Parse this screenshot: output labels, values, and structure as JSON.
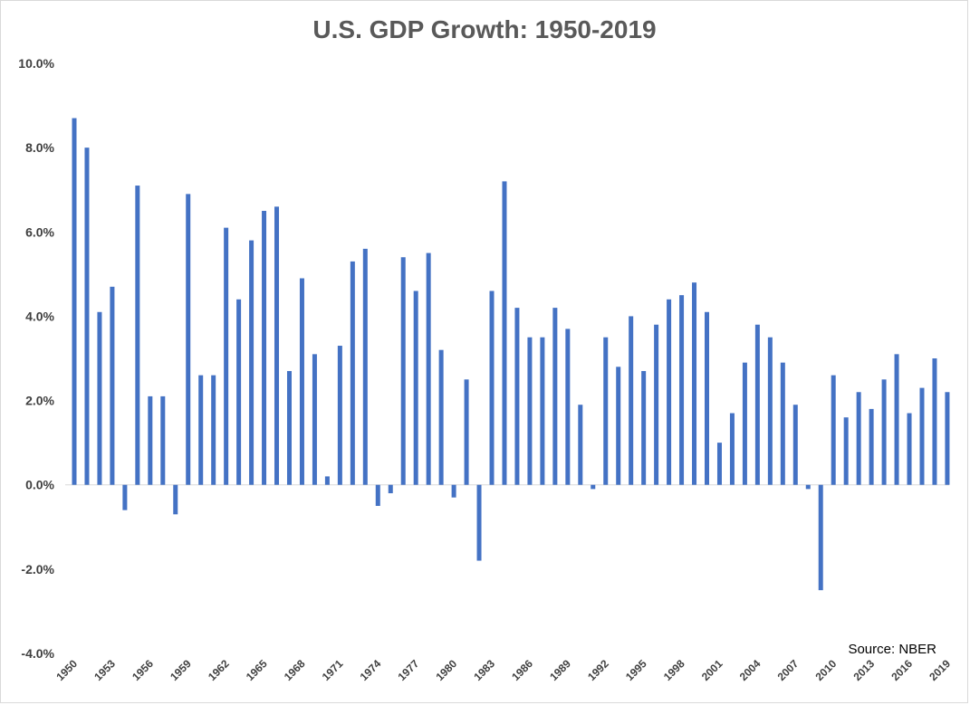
{
  "chart_data": {
    "type": "bar",
    "title": "U.S. GDP Growth: 1950-2019",
    "xlabel": "",
    "ylabel": "",
    "ylim": [
      -4,
      10
    ],
    "grid": false,
    "legend": "none",
    "bar_color": "#4472C4",
    "source": "Source: NBER",
    "y_ticks": [
      {
        "value": -4,
        "label": "-4.0%"
      },
      {
        "value": -2,
        "label": "-2.0%"
      },
      {
        "value": 0,
        "label": "0.0%"
      },
      {
        "value": 2,
        "label": "2.0%"
      },
      {
        "value": 4,
        "label": "4.0%"
      },
      {
        "value": 6,
        "label": "6.0%"
      },
      {
        "value": 8,
        "label": "8.0%"
      },
      {
        "value": 10,
        "label": "10.0%"
      }
    ],
    "x_tick_labels": [
      "1950",
      "1953",
      "1956",
      "1959",
      "1962",
      "1965",
      "1968",
      "1971",
      "1974",
      "1977",
      "1980",
      "1983",
      "1986",
      "1989",
      "1992",
      "1995",
      "1998",
      "2001",
      "2004",
      "2007",
      "2010",
      "2013",
      "2016",
      "2019"
    ],
    "categories": [
      "1950",
      "1951",
      "1952",
      "1953",
      "1954",
      "1955",
      "1956",
      "1957",
      "1958",
      "1959",
      "1960",
      "1961",
      "1962",
      "1963",
      "1964",
      "1965",
      "1966",
      "1967",
      "1968",
      "1969",
      "1970",
      "1971",
      "1972",
      "1973",
      "1974",
      "1975",
      "1976",
      "1977",
      "1978",
      "1979",
      "1980",
      "1981",
      "1982",
      "1983",
      "1984",
      "1985",
      "1986",
      "1987",
      "1988",
      "1989",
      "1990",
      "1991",
      "1992",
      "1993",
      "1994",
      "1995",
      "1996",
      "1997",
      "1998",
      "1999",
      "2000",
      "2001",
      "2002",
      "2003",
      "2004",
      "2005",
      "2006",
      "2007",
      "2008",
      "2009",
      "2010",
      "2011",
      "2012",
      "2013",
      "2014",
      "2015",
      "2016",
      "2017",
      "2018",
      "2019"
    ],
    "values": [
      8.7,
      8.0,
      4.1,
      4.7,
      -0.6,
      7.1,
      2.1,
      2.1,
      -0.7,
      6.9,
      2.6,
      2.6,
      6.1,
      4.4,
      5.8,
      6.5,
      6.6,
      2.7,
      4.9,
      3.1,
      0.2,
      3.3,
      5.3,
      5.6,
      -0.5,
      -0.2,
      5.4,
      4.6,
      5.5,
      3.2,
      -0.3,
      2.5,
      -1.8,
      4.6,
      7.2,
      4.2,
      3.5,
      3.5,
      4.2,
      3.7,
      1.9,
      -0.1,
      3.5,
      2.8,
      4.0,
      2.7,
      3.8,
      4.4,
      4.5,
      4.8,
      4.1,
      1.0,
      1.7,
      2.9,
      3.8,
      3.5,
      2.9,
      1.9,
      -0.1,
      -2.5,
      2.6,
      1.6,
      2.2,
      1.8,
      2.5,
      3.1,
      1.7,
      2.3,
      3.0,
      2.2
    ]
  }
}
